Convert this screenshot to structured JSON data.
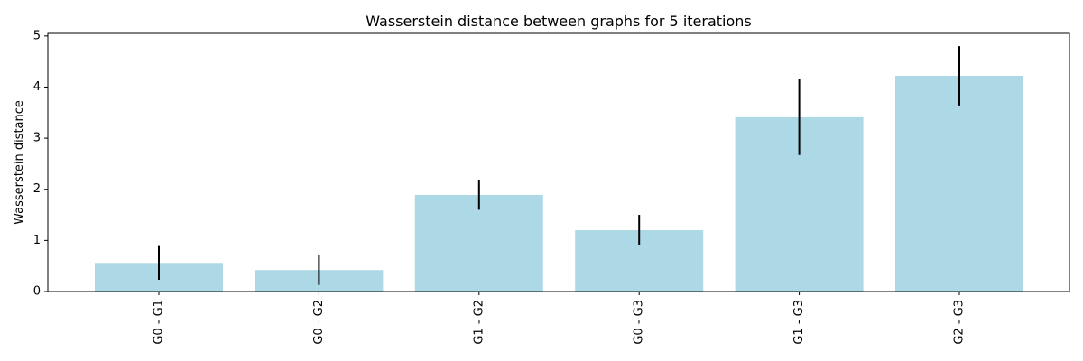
{
  "chart_data": {
    "type": "bar",
    "title": "Wasserstein distance between graphs for 5 iterations",
    "xlabel": "",
    "ylabel": "Wasserstein distance",
    "categories": [
      "G0 - G1",
      "G0 - G2",
      "G1 - G2",
      "G0 - G3",
      "G1 - G3",
      "G2 - G3"
    ],
    "values": [
      0.56,
      0.42,
      1.89,
      1.2,
      3.41,
      4.22
    ],
    "error": [
      0.33,
      0.29,
      0.29,
      0.3,
      0.74,
      0.58
    ],
    "ylim": [
      0,
      5.05
    ],
    "yticks": [
      0,
      1,
      2,
      3,
      4,
      5
    ],
    "grid": false,
    "bar_color": "#add8e6",
    "error_color": "#000000"
  }
}
